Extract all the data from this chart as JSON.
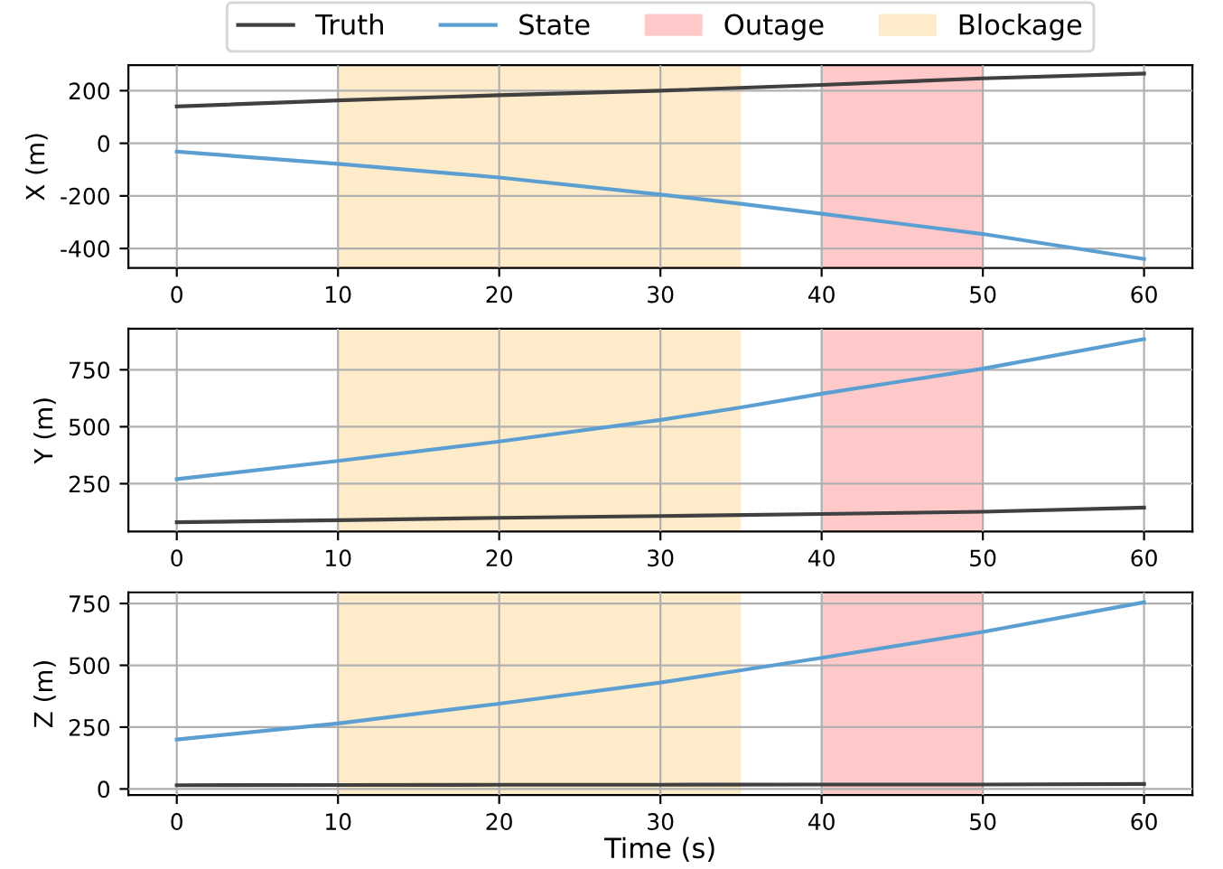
{
  "chart_data": [
    {
      "type": "line",
      "ylabel": "X (m)",
      "xlim": [
        -3,
        63
      ],
      "xticks": [
        0,
        10,
        20,
        30,
        40,
        50,
        60
      ],
      "ylim": [
        -474,
        297
      ],
      "yticks": [
        -400,
        -200,
        0,
        200
      ],
      "grid": true,
      "legend": "top",
      "series": [
        {
          "name": "Truth",
          "color": "#404040",
          "x": [
            0,
            10,
            20,
            30,
            40,
            50,
            60
          ],
          "values": [
            140,
            163,
            183,
            200,
            222,
            247,
            265
          ]
        },
        {
          "name": "State",
          "color": "#5b9fd2",
          "x": [
            0,
            10,
            20,
            30,
            35,
            40,
            50,
            60
          ],
          "values": [
            -32,
            -78,
            -130,
            -195,
            -230,
            -268,
            -345,
            -440
          ]
        }
      ],
      "bands": [
        {
          "axis": "x",
          "from": 40,
          "to": 50,
          "label": "Outage",
          "color": "#ffc9c9"
        },
        {
          "axis": "x",
          "from": 10,
          "to": 35,
          "label": "Blockage",
          "color": "#fdebc9"
        }
      ]
    },
    {
      "type": "line",
      "ylabel": "Y (m)",
      "xlim": [
        -3,
        63
      ],
      "xticks": [
        0,
        10,
        20,
        30,
        40,
        50,
        60
      ],
      "ylim": [
        40,
        930
      ],
      "yticks": [
        250,
        500,
        750
      ],
      "grid": true,
      "series": [
        {
          "color": "#404040",
          "x": [
            0,
            10,
            20,
            30,
            40,
            50,
            60
          ],
          "values": [
            81,
            90,
            100,
            108,
            117,
            127,
            145
          ]
        },
        {
          "color": "#5b9fd2",
          "x": [
            0,
            10,
            20,
            30,
            35,
            40,
            50,
            60
          ],
          "values": [
            270,
            350,
            435,
            530,
            585,
            645,
            755,
            885
          ]
        }
      ],
      "bands": [
        {
          "axis": "x",
          "from": 40,
          "to": 50,
          "color": "#ffc9c9"
        },
        {
          "axis": "x",
          "from": 10,
          "to": 35,
          "color": "#fdebc9"
        }
      ]
    },
    {
      "type": "line",
      "ylabel": "Z (m)",
      "xlabel": "Time (s)",
      "xlim": [
        -3,
        63
      ],
      "xticks": [
        0,
        10,
        20,
        30,
        40,
        50,
        60
      ],
      "ylim": [
        -25,
        795
      ],
      "yticks": [
        0,
        250,
        500,
        750
      ],
      "grid": true,
      "series": [
        {
          "color": "#404040",
          "x": [
            0,
            10,
            20,
            30,
            40,
            50,
            60
          ],
          "values": [
            15,
            16,
            17,
            17,
            18,
            18,
            20
          ]
        },
        {
          "color": "#5b9fd2",
          "x": [
            0,
            10,
            20,
            30,
            35,
            40,
            50,
            60
          ],
          "values": [
            200,
            265,
            345,
            430,
            480,
            530,
            635,
            755
          ]
        }
      ],
      "bands": [
        {
          "axis": "x",
          "from": 40,
          "to": 50,
          "color": "#ffc9c9"
        },
        {
          "axis": "x",
          "from": 10,
          "to": 35,
          "color": "#fdebc9"
        }
      ]
    }
  ]
}
